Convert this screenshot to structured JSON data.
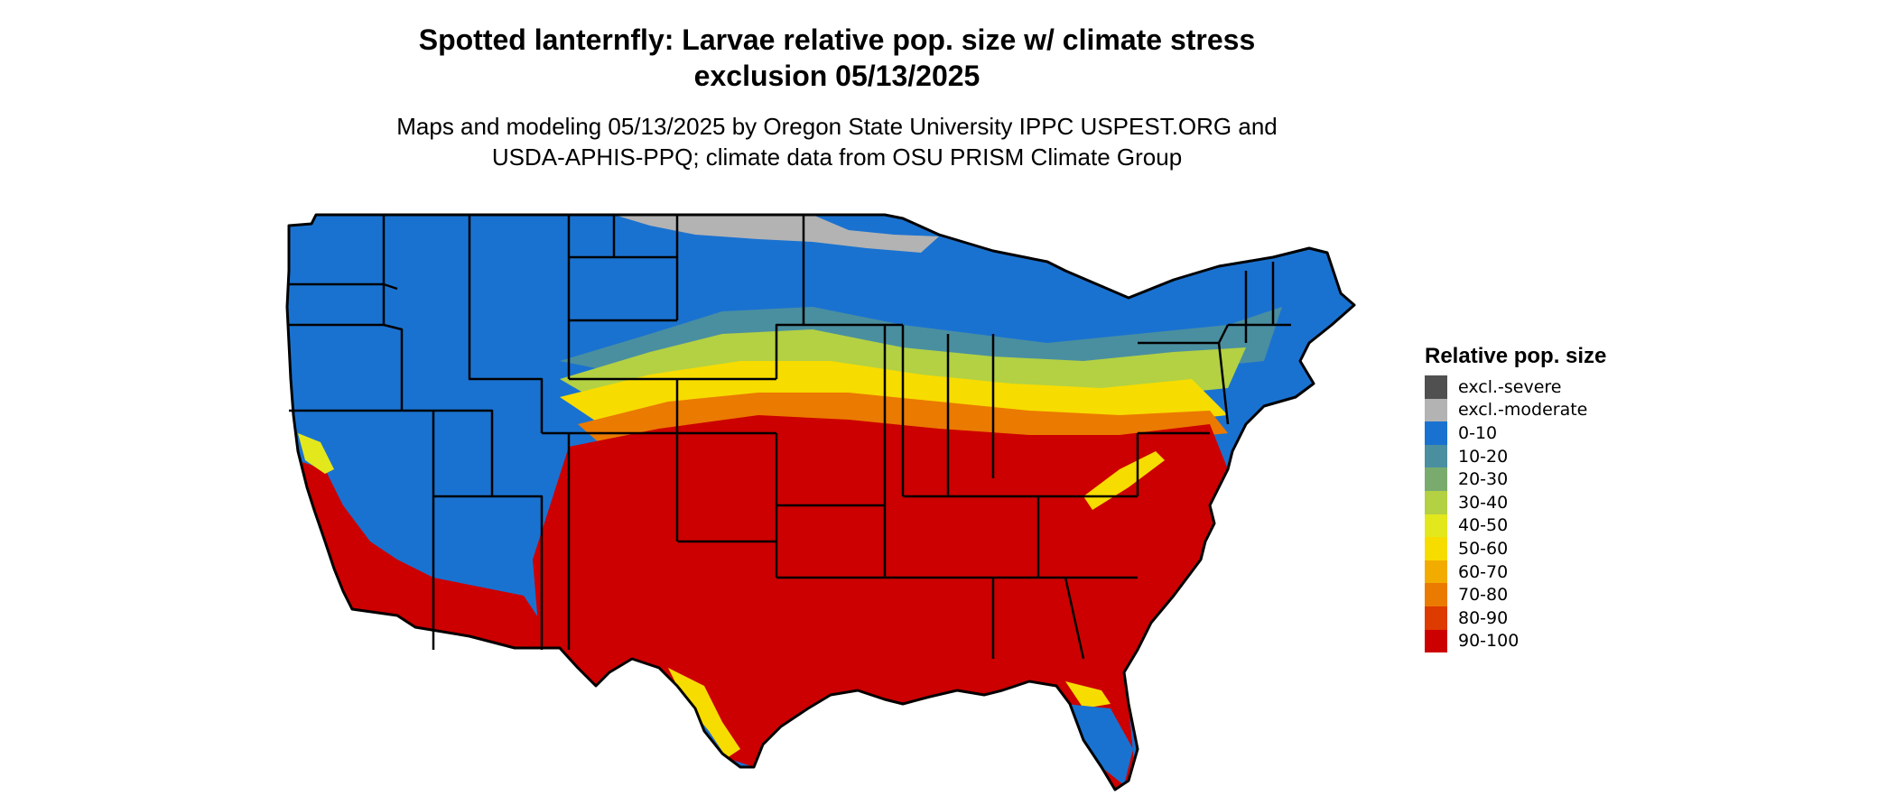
{
  "title": {
    "line1": "Spotted lanternfly: Larvae relative pop. size w/ climate stress",
    "line2": "exclusion 05/13/2025"
  },
  "subtitle": {
    "line1": "Maps and modeling 05/13/2025 by Oregon State University IPPC USPEST.ORG and",
    "line2": "USDA-APHIS-PPQ; climate data from OSU PRISM Climate Group"
  },
  "legend": {
    "title": "Relative pop. size",
    "items": [
      {
        "label": "excl.-severe",
        "color": "#505050"
      },
      {
        "label": "excl.-moderate",
        "color": "#b3b3b3"
      },
      {
        "label": "0-10",
        "color": "#1a72d0"
      },
      {
        "label": "10-20",
        "color": "#4a8fa0"
      },
      {
        "label": "20-30",
        "color": "#7aab6e"
      },
      {
        "label": "30-40",
        "color": "#b3d143"
      },
      {
        "label": "40-50",
        "color": "#e3e81c"
      },
      {
        "label": "50-60",
        "color": "#f7dc00"
      },
      {
        "label": "60-70",
        "color": "#f2ac00"
      },
      {
        "label": "70-80",
        "color": "#eb7a00"
      },
      {
        "label": "80-90",
        "color": "#de3b00"
      },
      {
        "label": "90-100",
        "color": "#cc0000"
      }
    ]
  },
  "map": {
    "region": "Contiguous United States",
    "boundary_color": "#000000"
  }
}
